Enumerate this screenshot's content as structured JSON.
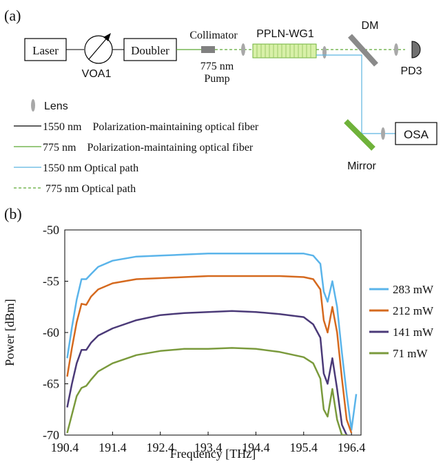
{
  "panel_a": {
    "label": "(a)",
    "laser": "Laser",
    "voa": "VOA1",
    "doubler": "Doubler",
    "collimator": "Collimator",
    "pump_wavelength": "775 nm",
    "pump": "Pump",
    "ppln": "PPLN-WG1",
    "dm": "DM",
    "pd": "PD3",
    "osa": "OSA",
    "mirror": "Mirror",
    "legend": {
      "lens": "Lens",
      "fiber_1550": "1550 nm    Polarization-maintaining optical fiber",
      "fiber_775": "775 nm    Polarization-maintaining optical fiber",
      "path_1550": "1550 nm Optical path",
      "path_775": "775 nm Optical path"
    },
    "colors": {
      "fiber_1550": "#000000",
      "fiber_775": "#5aa832",
      "path_1550": "#5ab4e0",
      "path_775": "#5aa832",
      "ppln_fill": "#d8f0a8",
      "mirror": "#6fb23a",
      "dm": "#8a8a8a",
      "lens": "#a8a8a8"
    }
  },
  "panel_b": {
    "label": "(b)"
  },
  "chart_data": {
    "type": "line",
    "xlabel": "Frequency [THz]",
    "ylabel": "Power [dBm]",
    "xlim": [
      190.4,
      196.6
    ],
    "ylim": [
      -70,
      -50
    ],
    "xticks": [
      "190.4",
      "191.4",
      "192.4",
      "193.4",
      "194.4",
      "195.4",
      "196.4"
    ],
    "yticks": [
      "-50",
      "-55",
      "-60",
      "-65",
      "-70"
    ],
    "legend_position": "right",
    "series": [
      {
        "name": "283 mW",
        "color": "#5ab4ea",
        "x": [
          190.45,
          190.55,
          190.65,
          190.75,
          190.85,
          190.95,
          191.1,
          191.4,
          191.9,
          192.4,
          192.9,
          193.4,
          193.9,
          194.4,
          194.9,
          195.4,
          195.6,
          195.75,
          195.82,
          195.9,
          196.0,
          196.1,
          196.2,
          196.3,
          196.4,
          196.5
        ],
        "values": [
          -62.5,
          -59.5,
          -56.8,
          -54.8,
          -54.8,
          -54.3,
          -53.6,
          -53.0,
          -52.6,
          -52.5,
          -52.4,
          -52.3,
          -52.3,
          -52.3,
          -52.3,
          -52.3,
          -52.5,
          -53.3,
          -56.0,
          -57.0,
          -55.0,
          -57.5,
          -62.0,
          -66.0,
          -69.5,
          -66.0
        ]
      },
      {
        "name": "212 mW",
        "color": "#d5691e",
        "x": [
          190.45,
          190.55,
          190.65,
          190.75,
          190.85,
          190.95,
          191.1,
          191.4,
          191.9,
          192.4,
          192.9,
          193.4,
          193.9,
          194.4,
          194.9,
          195.4,
          195.6,
          195.75,
          195.82,
          195.9,
          196.0,
          196.1,
          196.2,
          196.3,
          196.4
        ],
        "values": [
          -64.3,
          -61.5,
          -59.0,
          -57.2,
          -57.3,
          -56.5,
          -55.8,
          -55.2,
          -54.8,
          -54.7,
          -54.6,
          -54.5,
          -54.5,
          -54.5,
          -54.5,
          -54.6,
          -54.8,
          -55.8,
          -58.8,
          -60.0,
          -57.5,
          -60.0,
          -64.5,
          -68.5,
          -69.8
        ]
      },
      {
        "name": "141 mW",
        "color": "#4b3a78",
        "x": [
          190.45,
          190.55,
          190.65,
          190.75,
          190.85,
          190.95,
          191.1,
          191.4,
          191.9,
          192.4,
          192.9,
          193.4,
          193.9,
          194.4,
          194.9,
          195.4,
          195.6,
          195.75,
          195.82,
          195.9,
          196.0,
          196.1,
          196.2,
          196.3
        ],
        "values": [
          -67.3,
          -65.0,
          -63.0,
          -61.7,
          -61.7,
          -61.0,
          -60.3,
          -59.6,
          -58.8,
          -58.3,
          -58.1,
          -58.0,
          -57.9,
          -58.0,
          -58.2,
          -58.5,
          -59.2,
          -60.5,
          -64.0,
          -65.0,
          -62.5,
          -65.5,
          -69.0,
          -70.0
        ]
      },
      {
        "name": "71 mW",
        "color": "#7a9a3c",
        "x": [
          190.45,
          190.55,
          190.65,
          190.75,
          190.85,
          190.95,
          191.1,
          191.4,
          191.9,
          192.4,
          192.9,
          193.4,
          193.9,
          194.4,
          194.9,
          195.4,
          195.6,
          195.75,
          195.82,
          195.9,
          196.0,
          196.1,
          196.2,
          196.3
        ],
        "values": [
          -69.8,
          -68.0,
          -66.2,
          -65.4,
          -65.2,
          -64.6,
          -63.8,
          -63.0,
          -62.2,
          -61.8,
          -61.6,
          -61.6,
          -61.5,
          -61.6,
          -61.9,
          -62.4,
          -63.0,
          -64.5,
          -67.5,
          -68.2,
          -65.5,
          -68.5,
          -70.0,
          -70.0
        ]
      }
    ]
  }
}
